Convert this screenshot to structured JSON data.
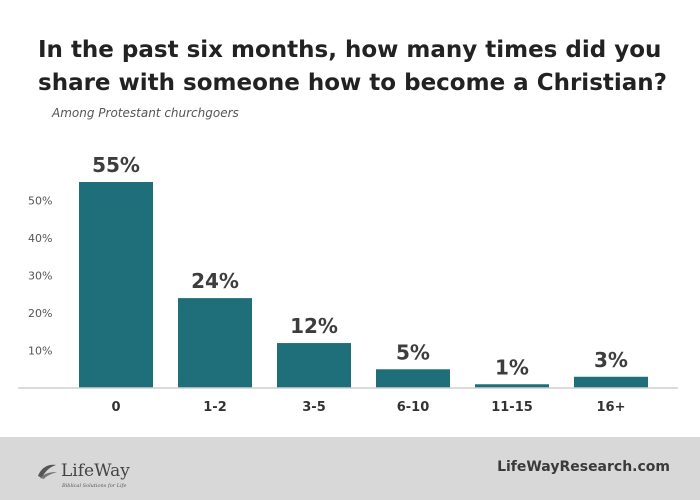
{
  "header": {
    "title": "In the past six months, how many times did you share with someone how to become a Christian?",
    "subtitle": "Among Protestant churchgoers"
  },
  "footer": {
    "logo_text": "LifeWay",
    "logo_tagline": "Biblical Solutions for Life",
    "site": "LifeWayResearch.com"
  },
  "colors": {
    "bar": "#1f6f7a",
    "footer_bg": "#d8d8d8"
  },
  "chart_data": {
    "type": "bar",
    "categories": [
      "0",
      "1-2",
      "3-5",
      "6-10",
      "11-15",
      "16+"
    ],
    "values": [
      55,
      24,
      12,
      5,
      1,
      3
    ],
    "data_labels": [
      "55%",
      "24%",
      "12%",
      "5%",
      "1%",
      "3%"
    ],
    "y_ticks": [
      10,
      20,
      30,
      40,
      50
    ],
    "y_tick_labels": [
      "10%",
      "20%",
      "30%",
      "40%",
      "50%"
    ],
    "ylim": [
      0,
      55
    ],
    "grid": false,
    "title": "In the past six months, how many times did you share with someone how to become a Christian?",
    "xlabel": "",
    "ylabel": ""
  }
}
